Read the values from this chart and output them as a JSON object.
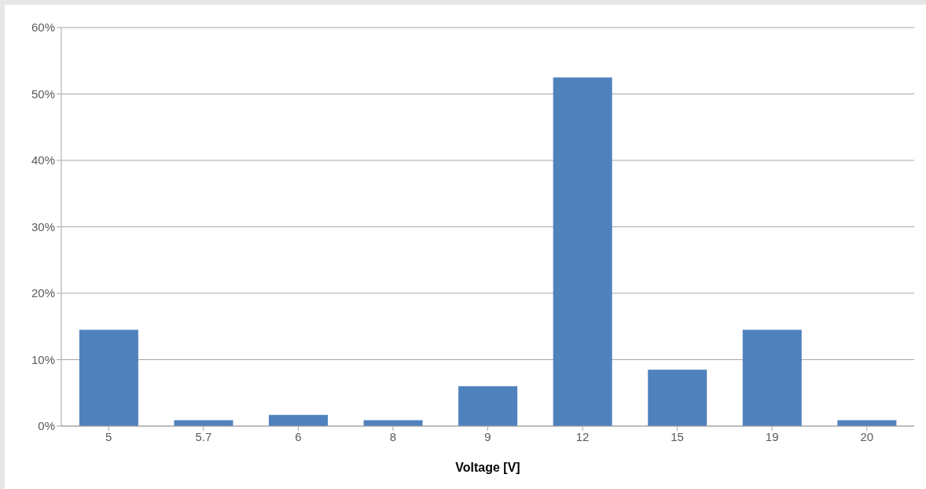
{
  "chart_data": {
    "type": "bar",
    "xlabel": "Voltage [V]",
    "categories": [
      "5",
      "5.7",
      "6",
      "8",
      "9",
      "12",
      "15",
      "19",
      "20"
    ],
    "values": [
      14.5,
      0.9,
      1.7,
      0.9,
      6,
      52.5,
      8.5,
      14.5,
      0.9
    ],
    "color": "#4f81bd",
    "ylim": [
      0,
      60
    ],
    "yticks": [
      {
        "value": 0,
        "label": "0%"
      },
      {
        "value": 10,
        "label": "10%"
      },
      {
        "value": 20,
        "label": "20%"
      },
      {
        "value": 30,
        "label": "30%"
      },
      {
        "value": 40,
        "label": "40%"
      },
      {
        "value": 50,
        "label": "50%"
      },
      {
        "value": 60,
        "label": "60%"
      }
    ],
    "grid": "y",
    "legend": false
  }
}
